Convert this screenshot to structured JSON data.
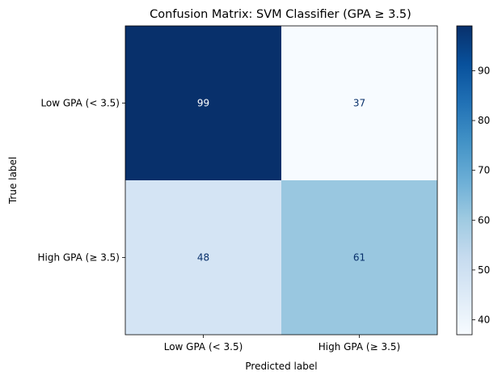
{
  "chart_data": {
    "type": "heatmap",
    "title": "Confusion Matrix: SVM Classifier (GPA ≥ 3.5)",
    "xlabel": "Predicted label",
    "ylabel": "True label",
    "x_categories": [
      "Low GPA (< 3.5)",
      "High GPA (≥ 3.5)"
    ],
    "y_categories": [
      "Low GPA (< 3.5)",
      "High GPA (≥ 3.5)"
    ],
    "values": [
      [
        99,
        37
      ],
      [
        48,
        61
      ]
    ],
    "colormap": "Blues",
    "colorbar": {
      "range": [
        37,
        99
      ],
      "ticks": [
        40,
        50,
        60,
        70,
        80,
        90
      ]
    },
    "colormap_stops": [
      "#f7fbff",
      "#deebf7",
      "#c6dbef",
      "#9ecae1",
      "#6baed6",
      "#4292c6",
      "#2171b5",
      "#08519c",
      "#08306b"
    ],
    "text_colors": {
      "on_dark": "#ffffff",
      "on_light": "#08306b"
    }
  }
}
